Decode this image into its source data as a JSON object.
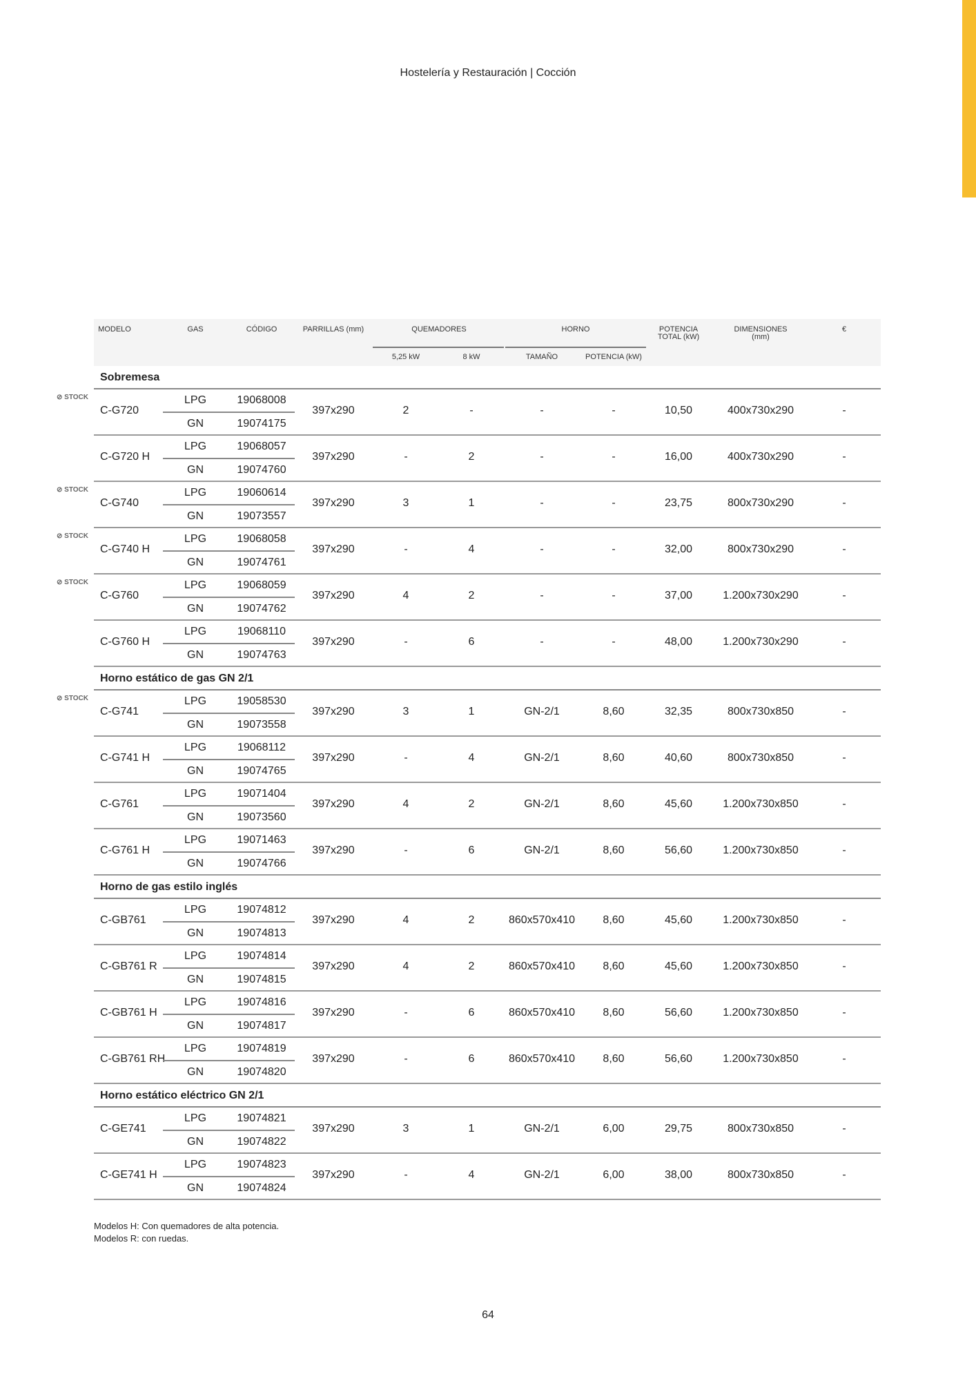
{
  "header_title": "Hostelería y Restauración | Cocción",
  "columns": {
    "modelo": "MODELO",
    "gas": "GAS",
    "codigo": "CÓDIGO",
    "parrillas": "PARRILLAS (mm)",
    "quemadores": "QUEMADORES",
    "q1": "5,25 kW",
    "q2": "8 kW",
    "horno": "HORNO",
    "tamano": "TAMAÑO",
    "potencia": "POTENCIA (kW)",
    "total": "POTENCIA TOTAL (kW)",
    "dims": "DIMENSIONES (mm)",
    "price": "€"
  },
  "stock_label": "STOCK",
  "sections": [
    {
      "title": "Sobremesa",
      "rows": [
        {
          "model": "C-G720",
          "stock": true,
          "lpg": "19068008",
          "gn": "19074175",
          "parrillas": "397x290",
          "q1": "2",
          "q2": "-",
          "tam": "-",
          "pot": "-",
          "total": "10,50",
          "dims": "400x730x290",
          "price": "-"
        },
        {
          "model": "C-G720 H",
          "stock": false,
          "lpg": "19068057",
          "gn": "19074760",
          "parrillas": "397x290",
          "q1": "-",
          "q2": "2",
          "tam": "-",
          "pot": "-",
          "total": "16,00",
          "dims": "400x730x290",
          "price": "-"
        },
        {
          "model": "C-G740",
          "stock": true,
          "lpg": "19060614",
          "gn": "19073557",
          "parrillas": "397x290",
          "q1": "3",
          "q2": "1",
          "tam": "-",
          "pot": "-",
          "total": "23,75",
          "dims": "800x730x290",
          "price": "-"
        },
        {
          "model": "C-G740 H",
          "stock": true,
          "lpg": "19068058",
          "gn": "19074761",
          "parrillas": "397x290",
          "q1": "-",
          "q2": "4",
          "tam": "-",
          "pot": "-",
          "total": "32,00",
          "dims": "800x730x290",
          "price": "-"
        },
        {
          "model": "C-G760",
          "stock": true,
          "lpg": "19068059",
          "gn": "19074762",
          "parrillas": "397x290",
          "q1": "4",
          "q2": "2",
          "tam": "-",
          "pot": "-",
          "total": "37,00",
          "dims": "1.200x730x290",
          "price": "-"
        },
        {
          "model": "C-G760 H",
          "stock": false,
          "lpg": "19068110",
          "gn": "19074763",
          "parrillas": "397x290",
          "q1": "-",
          "q2": "6",
          "tam": "-",
          "pot": "-",
          "total": "48,00",
          "dims": "1.200x730x290",
          "price": "-"
        }
      ]
    },
    {
      "title": "Horno estático de gas GN 2/1",
      "rows": [
        {
          "model": "C-G741",
          "stock": true,
          "lpg": "19058530",
          "gn": "19073558",
          "parrillas": "397x290",
          "q1": "3",
          "q2": "1",
          "tam": "GN-2/1",
          "pot": "8,60",
          "total": "32,35",
          "dims": "800x730x850",
          "price": "-"
        },
        {
          "model": "C-G741 H",
          "stock": false,
          "lpg": "19068112",
          "gn": "19074765",
          "parrillas": "397x290",
          "q1": "-",
          "q2": "4",
          "tam": "GN-2/1",
          "pot": "8,60",
          "total": "40,60",
          "dims": "800x730x850",
          "price": "-"
        },
        {
          "model": "C-G761",
          "stock": false,
          "lpg": "19071404",
          "gn": "19073560",
          "parrillas": "397x290",
          "q1": "4",
          "q2": "2",
          "tam": "GN-2/1",
          "pot": "8,60",
          "total": "45,60",
          "dims": "1.200x730x850",
          "price": "-"
        },
        {
          "model": "C-G761 H",
          "stock": false,
          "lpg": "19071463",
          "gn": "19074766",
          "parrillas": "397x290",
          "q1": "-",
          "q2": "6",
          "tam": "GN-2/1",
          "pot": "8,60",
          "total": "56,60",
          "dims": "1.200x730x850",
          "price": "-"
        }
      ]
    },
    {
      "title": "Horno de gas estilo inglés",
      "rows": [
        {
          "model": "C-GB761",
          "stock": false,
          "lpg": "19074812",
          "gn": "19074813",
          "parrillas": "397x290",
          "q1": "4",
          "q2": "2",
          "tam": "860x570x410",
          "pot": "8,60",
          "total": "45,60",
          "dims": "1.200x730x850",
          "price": "-"
        },
        {
          "model": "C-GB761 R",
          "stock": false,
          "lpg": "19074814",
          "gn": "19074815",
          "parrillas": "397x290",
          "q1": "4",
          "q2": "2",
          "tam": "860x570x410",
          "pot": "8,60",
          "total": "45,60",
          "dims": "1.200x730x850",
          "price": "-"
        },
        {
          "model": "C-GB761 H",
          "stock": false,
          "lpg": "19074816",
          "gn": "19074817",
          "parrillas": "397x290",
          "q1": "-",
          "q2": "6",
          "tam": "860x570x410",
          "pot": "8,60",
          "total": "56,60",
          "dims": "1.200x730x850",
          "price": "-"
        },
        {
          "model": "C-GB761 RH",
          "stock": false,
          "lpg": "19074819",
          "gn": "19074820",
          "parrillas": "397x290",
          "q1": "-",
          "q2": "6",
          "tam": "860x570x410",
          "pot": "8,60",
          "total": "56,60",
          "dims": "1.200x730x850",
          "price": "-"
        }
      ]
    },
    {
      "title": "Horno estático eléctrico GN 2/1",
      "rows": [
        {
          "model": "C-GE741",
          "stock": false,
          "lpg": "19074821",
          "gn": "19074822",
          "parrillas": "397x290",
          "q1": "3",
          "q2": "1",
          "tam": "GN-2/1",
          "pot": "6,00",
          "total": "29,75",
          "dims": "800x730x850",
          "price": "-"
        },
        {
          "model": "C-GE741 H",
          "stock": false,
          "lpg": "19074823",
          "gn": "19074824",
          "parrillas": "397x290",
          "q1": "-",
          "q2": "4",
          "tam": "GN-2/1",
          "pot": "6,00",
          "total": "38,00",
          "dims": "800x730x850",
          "price": "-"
        }
      ]
    }
  ],
  "gas_labels": {
    "lpg": "LPG",
    "gn": "GN"
  },
  "notes": [
    "Modelos H: Con quemadores de alta potencia.",
    "Modelos R: con ruedas."
  ],
  "page_number": "64",
  "accent_color": "#f7bd2e"
}
